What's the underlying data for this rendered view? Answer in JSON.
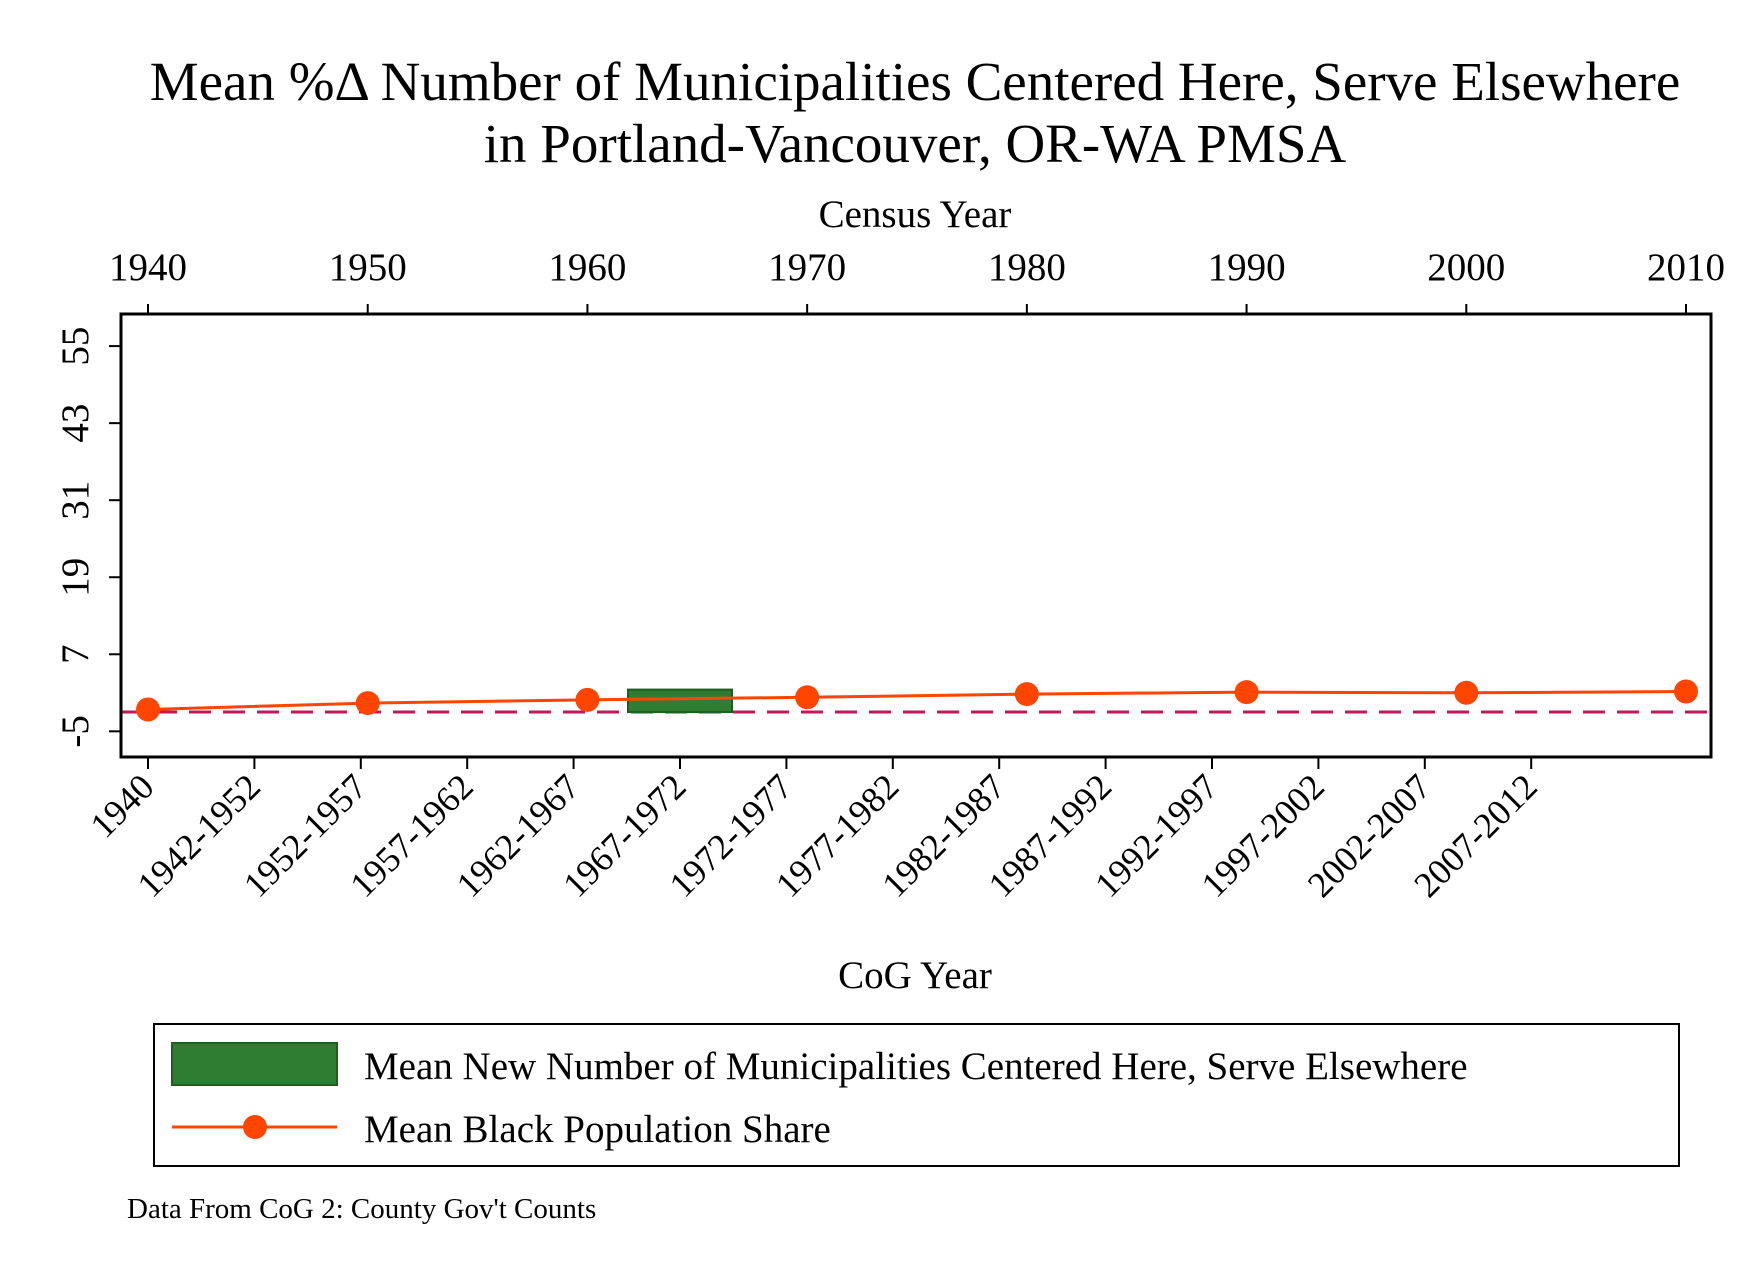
{
  "chart_data": {
    "type": "bar",
    "title_line1": "Mean %Δ Number of Municipalities Centered Here, Serve Elsewhere",
    "title_line2": "in Portland-Vancouver, OR-WA PMSA",
    "top_axis_label": "Census Year",
    "top_ticks": [
      "1940",
      "1950",
      "1960",
      "1970",
      "1980",
      "1990",
      "2000",
      "2010"
    ],
    "top_xlim": [
      1940,
      2010
    ],
    "xlabel": "CoG Year",
    "bottom_ticks": [
      "1940",
      "1942-1952",
      "1952-1957",
      "1957-1962",
      "1962-1967",
      "1967-1972",
      "1972-1977",
      "1977-1982",
      "1982-1987",
      "1987-1992",
      "1992-1997",
      "1997-2002",
      "2002-2007",
      "2007-2012"
    ],
    "y_ticks": [
      "-5",
      "7",
      "19",
      "31",
      "43",
      "55"
    ],
    "ylim": [
      -9,
      60
    ],
    "reference_line_y": -2,
    "series": [
      {
        "name": "Mean New Number of Municipalities Centered Here, Serve Elsewhere",
        "kind": "bar",
        "color": "#2e7d32",
        "bars": [
          {
            "category": "1967-1972",
            "value": 1.5
          }
        ]
      },
      {
        "name": "Mean Black Population Share",
        "kind": "line",
        "color": "#ff4500",
        "x": [
          1940,
          1950,
          1960,
          1970,
          1980,
          1990,
          2000,
          2010
        ],
        "values": [
          -1.6,
          -0.6,
          -0.1,
          0.3,
          0.8,
          1.1,
          1.0,
          1.2
        ]
      }
    ],
    "legend_position": "bottom",
    "note": "Data From CoG 2: County Gov't Counts"
  }
}
